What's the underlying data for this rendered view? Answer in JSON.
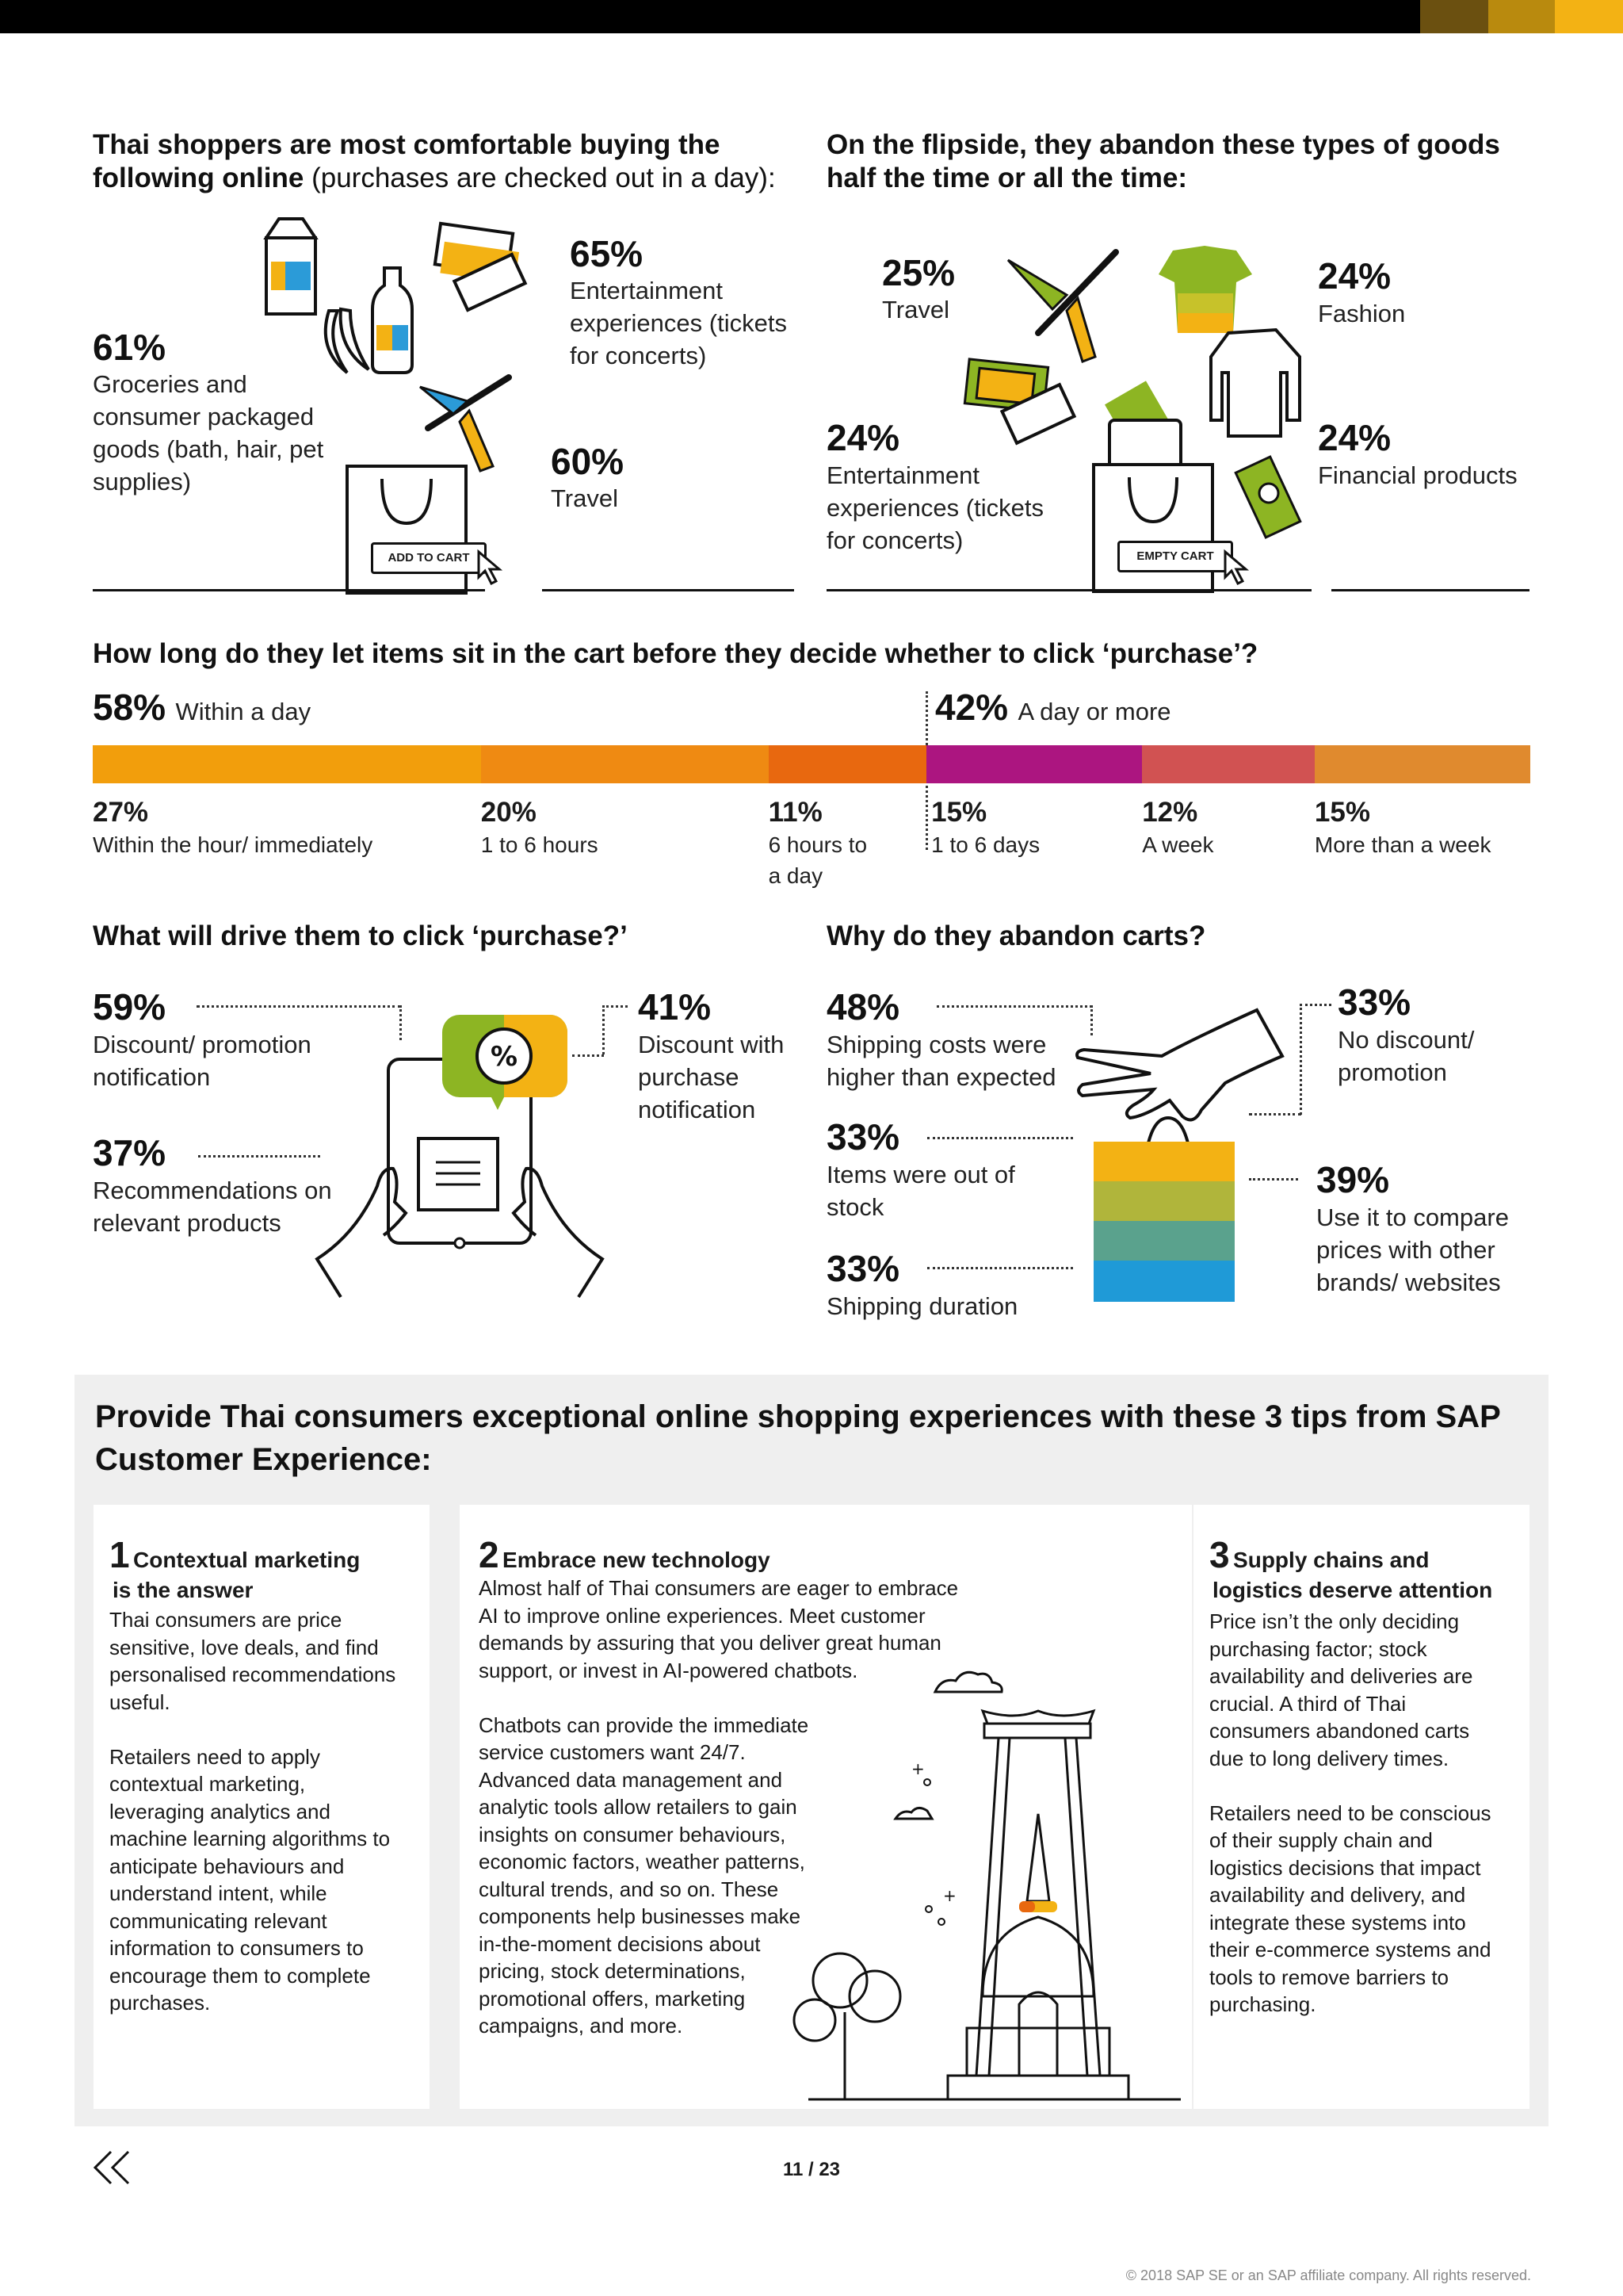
{
  "colors": {
    "top_bar": "#000000",
    "accent_brown": "#6b5010",
    "accent_gold": "#b98a0e",
    "accent_yellow": "#f3b214"
  },
  "comfortable": {
    "heading_bold": "Thai shoppers are most comfortable buying the following online",
    "heading_light": " (purchases are checked out in a day):",
    "items": [
      {
        "pct": "61%",
        "label": "Groceries and consumer packaged goods (bath, hair, pet supplies)"
      },
      {
        "pct": "65%",
        "label": "Entertainment experiences (tickets for concerts)"
      },
      {
        "pct": "60%",
        "label": "Travel"
      }
    ],
    "cart_button": "ADD TO CART"
  },
  "abandon": {
    "heading": "On the flipside, they abandon these types of goods half the time or all the time:",
    "items": [
      {
        "pct": "25%",
        "label": "Travel"
      },
      {
        "pct": "24%",
        "label": "Fashion"
      },
      {
        "pct": "24%",
        "label": "Entertainment experiences (tickets for concerts)"
      },
      {
        "pct": "24%",
        "label": "Financial products"
      }
    ],
    "cart_button": "EMPTY CART"
  },
  "cart_time": {
    "question": "How long do they let items sit in the cart before they decide whether to click ‘purchase’?",
    "left_pct": "58%",
    "left_label": "Within a day",
    "right_pct": "42%",
    "right_label": "A day or more",
    "segments": [
      {
        "pct": "27%",
        "label": "Within the hour/ immediately",
        "value": 27,
        "color": "#f29e0c"
      },
      {
        "pct": "20%",
        "label": "1 to 6 hours",
        "value": 20,
        "color": "#ef8a12"
      },
      {
        "pct": "11%",
        "label": "6 hours to a day",
        "value": 11,
        "color": "#e8680f"
      },
      {
        "pct": "15%",
        "label": "1 to 6 days",
        "value": 15,
        "color": "#ac1580"
      },
      {
        "pct": "12%",
        "label": "A week",
        "value": 12,
        "color": "#d15252"
      },
      {
        "pct": "15%",
        "label": "More than a week",
        "value": 15,
        "color": "#e08a2e"
      }
    ]
  },
  "drive": {
    "question": "What will drive them to click ‘purchase?’",
    "items": [
      {
        "pct": "59%",
        "label": "Discount/ promotion notification"
      },
      {
        "pct": "37%",
        "label": "Recommendations on relevant products"
      },
      {
        "pct": "41%",
        "label": "Discount with purchase notification"
      }
    ]
  },
  "why_abandon": {
    "question": "Why do they abandon carts?",
    "items": [
      {
        "pct": "48%",
        "label": "Shipping costs were higher than expected"
      },
      {
        "pct": "33%",
        "label": "Items were out of stock"
      },
      {
        "pct": "33%",
        "label": "Shipping duration"
      },
      {
        "pct": "33%",
        "label": "No discount/ promotion"
      },
      {
        "pct": "39%",
        "label": "Use it to compare prices with other brands/ websites"
      }
    ]
  },
  "tips": {
    "heading": "Provide Thai consumers exceptional online shopping experiences with these 3 tips from SAP Customer Experience:",
    "cards": [
      {
        "num": "1",
        "title_a": "Contextual marketing",
        "title_b": "is the answer",
        "body": "Thai consumers are price\nsensitive, love deals, and find\npersonalised recommendations\nuseful.\n\nRetailers need to apply\ncontextual marketing,\nleveraging analytics and\nmachine learning algorithms to\nanticipate behaviours and\nunderstand intent, while\ncommunicating relevant\ninformation to consumers to\nencourage them to complete\npurchases."
      },
      {
        "num": "2",
        "title_a": "Embrace new technology",
        "title_b": "",
        "body": "Almost half of Thai consumers are eager to embrace\nAI to improve online experiences. Meet customer\ndemands by assuring that you deliver great human\nsupport, or invest in AI-powered chatbots.\n\nChatbots can provide the immediate\nservice customers want 24/7.\nAdvanced data management and\nanalytic tools allow retailers to gain\ninsights on consumer behaviours,\neconomic factors, weather patterns,\ncultural trends, and so on. These\ncomponents help businesses make\nin-the-moment decisions about\npricing, stock determinations,\npromotional offers, marketing\ncampaigns, and more."
      },
      {
        "num": "3",
        "title_a": "Supply chains and",
        "title_b": "logistics deserve attention",
        "body": "Price isn’t the only deciding\npurchasing factor; stock\navailability and deliveries are\ncrucial. A third of Thai\nconsumers abandoned carts\ndue to long delivery times.\n\nRetailers need to be conscious\nof their supply chain and\nlogistics decisions that impact\navailability and delivery, and\nintegrate these systems into\ntheir e-commerce systems and\ntools to remove barriers to\npurchasing."
      }
    ]
  },
  "footer": {
    "back_icon": "double-chevron-left-icon",
    "page": "11 / 23",
    "copyright": "© 2018 SAP SE or an SAP affiliate company. All rights reserved."
  }
}
